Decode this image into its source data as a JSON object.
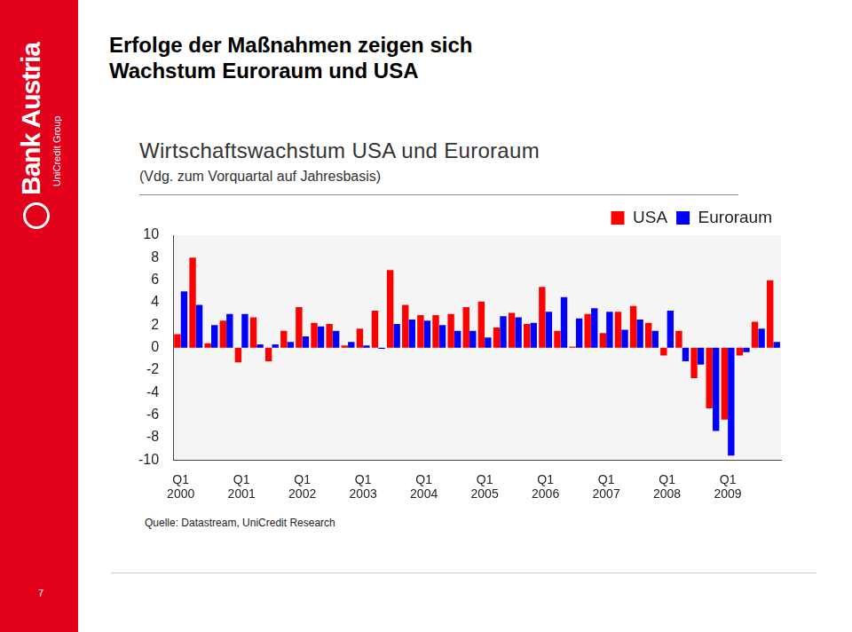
{
  "slide": {
    "logo": "Bank Austria",
    "logo_subtitle": "UniCredit Group",
    "headline": [
      "Erfolge der Maßnahmen zeigen sich",
      "Wachstum Euroraum und USA"
    ],
    "source": "Quelle: Datastream, UniCredit Research",
    "page_number": 7
  },
  "chart_data": {
    "type": "bar",
    "title": "Wirtschaftswachstum USA und Euroraum",
    "subtitle": "(Vdg. zum Vorquartal auf Jahresbasis)",
    "categories": [
      "Q1 2000",
      null,
      null,
      null,
      "Q1 2001",
      null,
      null,
      null,
      "Q1 2002",
      null,
      null,
      null,
      "Q1 2003",
      null,
      null,
      null,
      "Q1 2004",
      null,
      null,
      null,
      "Q1 2005",
      null,
      null,
      null,
      "Q1 2006",
      null,
      null,
      null,
      "Q1 2007",
      null,
      null,
      null,
      "Q1 2008",
      null,
      null,
      null,
      "Q1 2009",
      null,
      null,
      null
    ],
    "series": [
      {
        "name": "USA",
        "color": "#ff0000",
        "values": [
          1.2,
          8.0,
          0.4,
          2.4,
          -1.3,
          2.7,
          -1.2,
          1.5,
          3.6,
          2.2,
          2.1,
          0.2,
          1.7,
          3.3,
          6.9,
          3.8,
          2.9,
          2.9,
          3.0,
          3.6,
          4.1,
          1.8,
          3.1,
          2.1,
          5.4,
          1.5,
          0.1,
          3.0,
          1.3,
          3.2,
          3.7,
          2.2,
          -0.7,
          1.5,
          -2.7,
          -5.4,
          -6.4,
          -0.7,
          2.3,
          6.0
        ]
      },
      {
        "name": "Euroraum",
        "color": "#0000ff",
        "values": [
          5.0,
          3.8,
          2.0,
          3.0,
          3.0,
          0.3,
          0.3,
          0.5,
          1.0,
          1.9,
          1.5,
          0.5,
          0.2,
          -0.1,
          2.1,
          2.5,
          2.4,
          2.0,
          1.5,
          1.5,
          0.9,
          2.8,
          2.7,
          2.2,
          3.2,
          4.5,
          2.6,
          3.5,
          3.2,
          1.6,
          2.5,
          1.5,
          3.3,
          -1.2,
          -1.5,
          -7.4,
          -9.6,
          -0.4,
          1.7,
          0.5
        ]
      }
    ],
    "ylim": [
      -10,
      10
    ],
    "yticks": [
      -10,
      -8,
      -6,
      -4,
      -2,
      0,
      2,
      4,
      6,
      8,
      10
    ],
    "grid": false,
    "legend": "top-right"
  }
}
